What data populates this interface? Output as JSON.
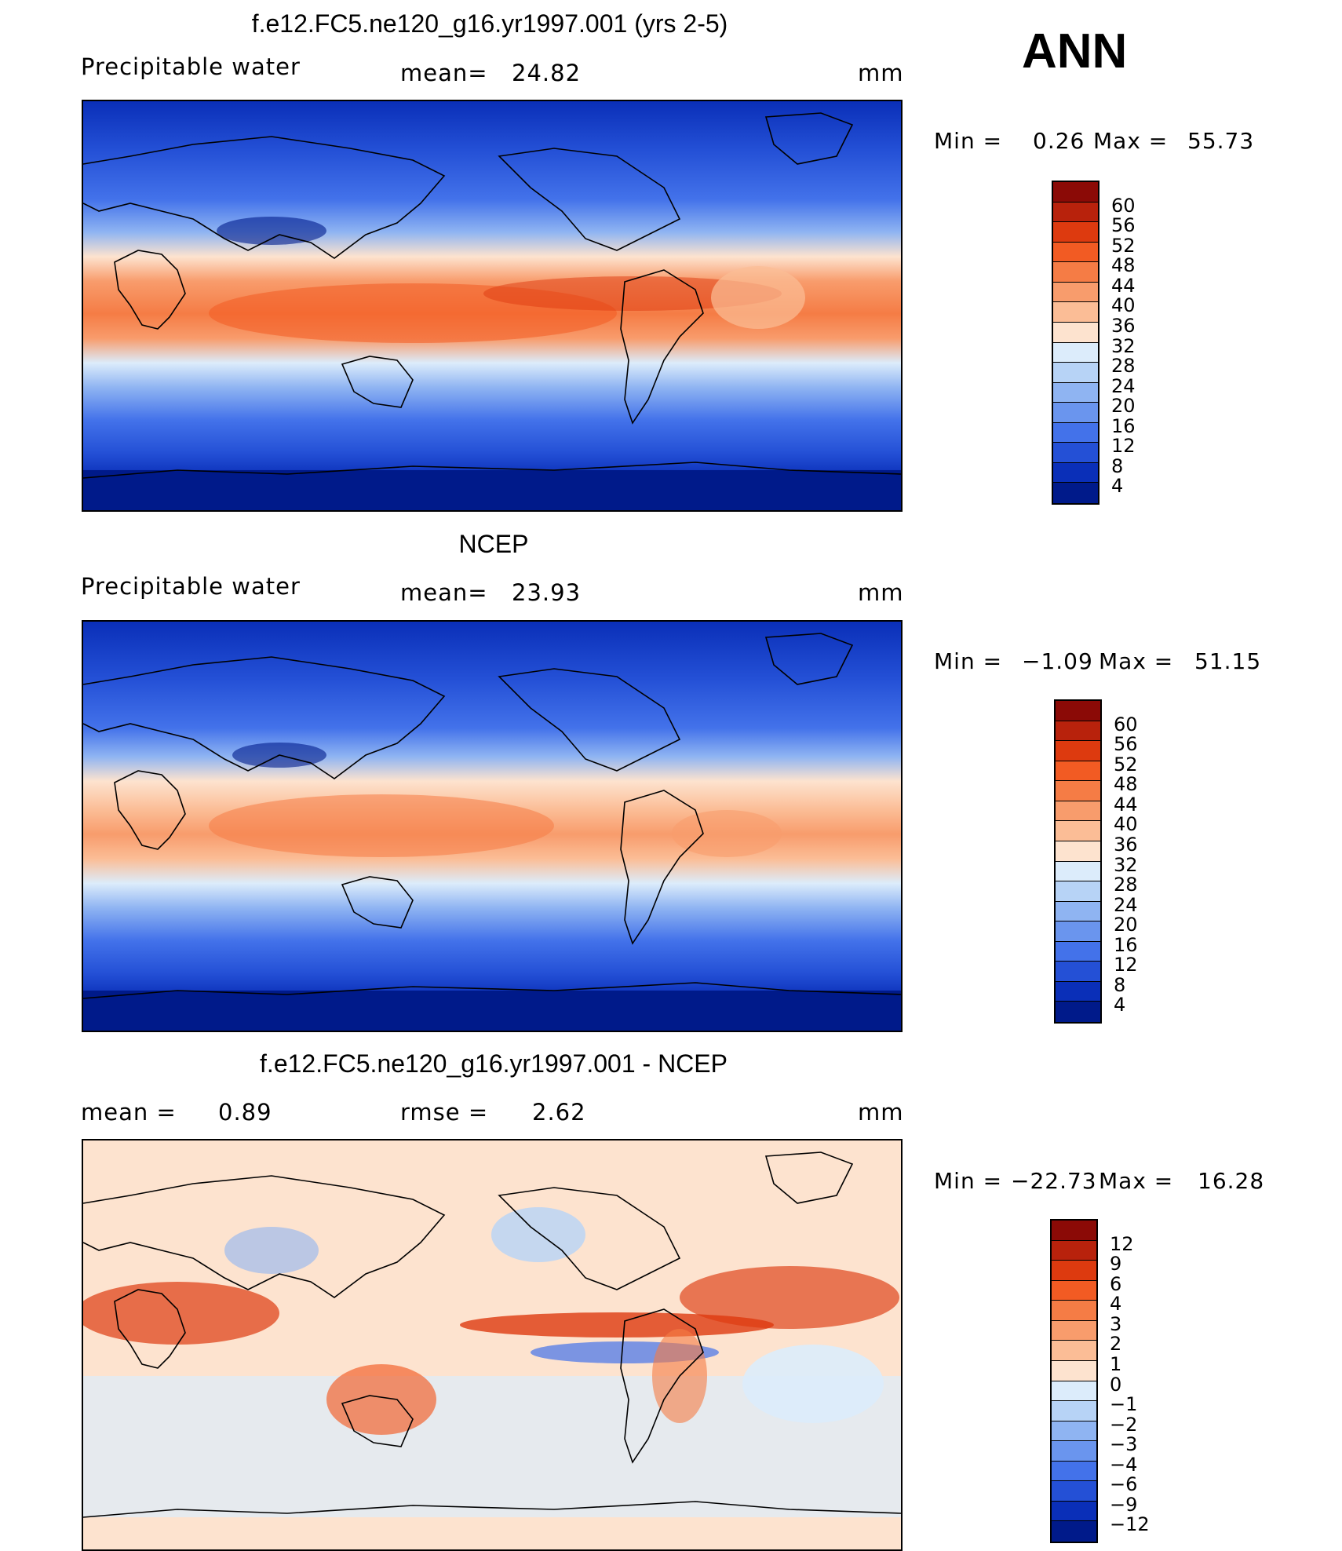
{
  "season": "ANN",
  "panels": [
    {
      "title": "f.e12.FC5.ne120_g16.yr1997.001 (yrs 2-5)",
      "left_label": "Precipitable  water",
      "stat_label": "mean=",
      "stat_value": "24.82",
      "units": "mm",
      "min_label": "Min  =",
      "min_value": "0.26",
      "max_label": "Max  =",
      "max_value": "55.73",
      "kind": "abs"
    },
    {
      "title": "NCEP",
      "left_label": "Precipitable  water",
      "stat_label": "mean=",
      "stat_value": "23.93",
      "units": "mm",
      "min_label": "Min  =",
      "min_value": "−1.09",
      "max_label": "Max  =",
      "max_value": "51.15",
      "kind": "abs"
    },
    {
      "title": "f.e12.FC5.ne120_g16.yr1997.001 - NCEP",
      "left_label": "mean  =",
      "left_value": "0.89",
      "stat_label": "rmse  =",
      "stat_value": "2.62",
      "units": "mm",
      "min_label": "Min  =",
      "min_value": "−22.73",
      "max_label": "Max  =",
      "max_value": "16.28",
      "kind": "diff"
    }
  ],
  "colorbars": {
    "abs": {
      "labels": [
        "60",
        "56",
        "52",
        "48",
        "44",
        "40",
        "36",
        "32",
        "28",
        "24",
        "20",
        "16",
        "12",
        "8",
        "4"
      ],
      "colors": [
        "#8b0a06",
        "#b8220c",
        "#dd3a0f",
        "#f25b23",
        "#f57c45",
        "#f89c6c",
        "#fbbd96",
        "#fde3cf",
        "#dcecfb",
        "#b7d3f6",
        "#8fb4f2",
        "#6a95ee",
        "#4372ea",
        "#2450d6",
        "#0a2fb8",
        "#001a8a"
      ]
    },
    "diff": {
      "labels": [
        "12",
        "9",
        "6",
        "4",
        "3",
        "2",
        "1",
        "0",
        "−1",
        "−2",
        "−3",
        "−4",
        "−6",
        "−9",
        "−12"
      ],
      "colors": [
        "#8b0a06",
        "#b8220c",
        "#dd3a0f",
        "#f25b23",
        "#f57c45",
        "#f89c6c",
        "#fbbd96",
        "#fde3cf",
        "#dcecfb",
        "#b7d3f6",
        "#8fb4f2",
        "#6a95ee",
        "#4372ea",
        "#2450d6",
        "#0a2fb8",
        "#001a8a"
      ]
    }
  }
}
